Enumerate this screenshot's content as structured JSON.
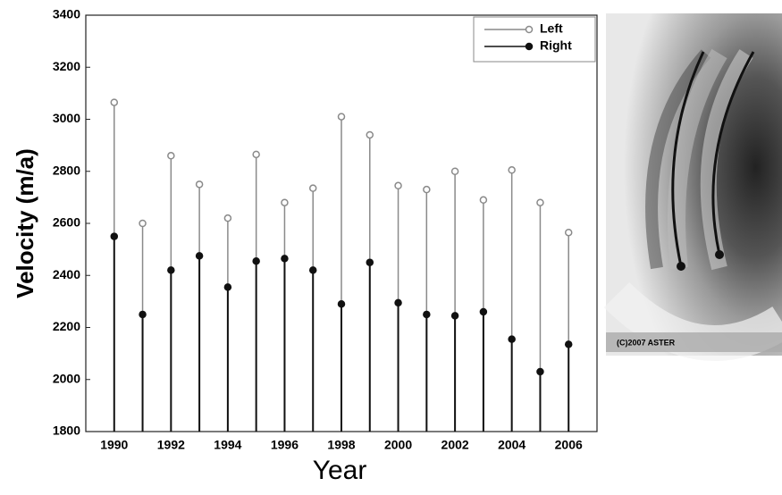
{
  "chart_data": {
    "type": "stem",
    "xlabel": "Year",
    "ylabel": "Velocity (m/a)",
    "x": [
      1990,
      1991,
      1992,
      1993,
      1994,
      1995,
      1996,
      1997,
      1998,
      1999,
      2000,
      2001,
      2002,
      2003,
      2004,
      2005,
      2006
    ],
    "series": [
      {
        "name": "Left",
        "color": "#8a8a8a",
        "marker": "open",
        "values": [
          3065,
          2600,
          2860,
          2750,
          2620,
          2865,
          2680,
          2735,
          3010,
          2940,
          2745,
          2730,
          2800,
          2690,
          2805,
          2680,
          2565
        ]
      },
      {
        "name": "Right",
        "color": "#111111",
        "marker": "filled",
        "values": [
          2550,
          2250,
          2420,
          2475,
          2355,
          2455,
          2465,
          2420,
          2290,
          2450,
          2295,
          2250,
          2245,
          2260,
          2155,
          2030,
          2135
        ]
      }
    ],
    "xlim": [
      1989,
      2007
    ],
    "xticks": [
      1990,
      1992,
      1994,
      1996,
      1998,
      2000,
      2002,
      2004,
      2006
    ],
    "ylim": [
      1800,
      3400
    ],
    "yticks": [
      1800,
      2000,
      2200,
      2400,
      2600,
      2800,
      3000,
      3200,
      3400
    ],
    "grid": false,
    "legend": "upper right",
    "image_caption": "(C)2007 ASTER"
  }
}
